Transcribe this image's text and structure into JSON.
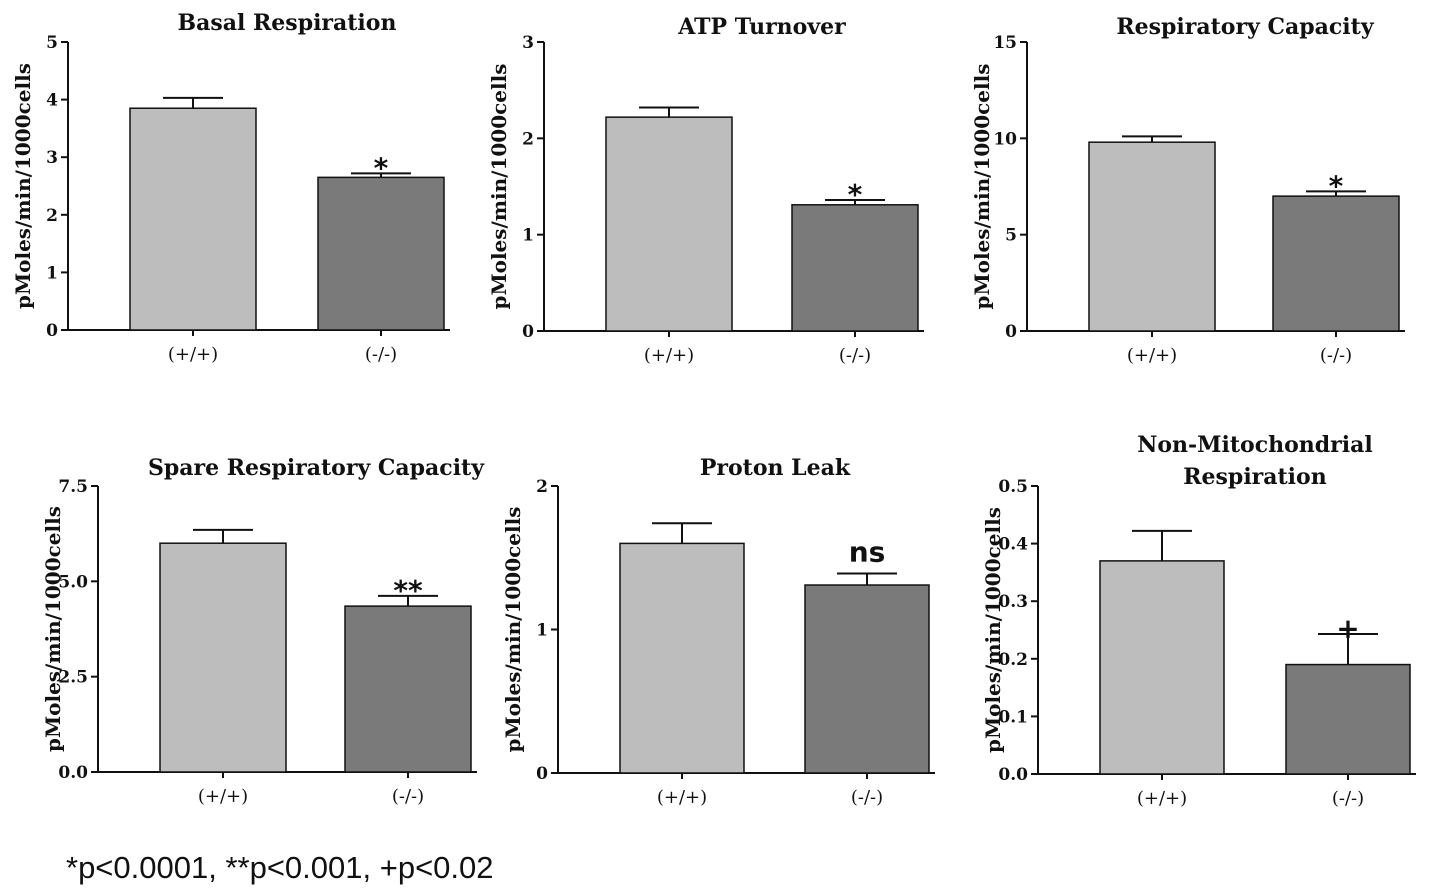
{
  "footnote": "*p<0.0001, **p<0.001, +p<0.02",
  "colors": {
    "wildtype_bar": "#bdbdbd",
    "knockout_bar": "#7a7a7a",
    "stroke": "#111111"
  },
  "chart_data": [
    {
      "type": "bar",
      "title": [
        "Basal Respiration"
      ],
      "ylabel": "pMoles/min/1000cells",
      "categories": [
        "(+/+)",
        "(-/-)"
      ],
      "values": [
        3.85,
        2.65
      ],
      "errors": [
        0.18,
        0.07
      ],
      "significance": [
        "",
        "*"
      ],
      "ylim": [
        0,
        5
      ],
      "yticks": [
        0,
        1,
        2,
        3,
        4,
        5
      ],
      "ytick_labels": [
        "0",
        "1",
        "2",
        "3",
        "4",
        "5"
      ]
    },
    {
      "type": "bar",
      "title": [
        "ATP Turnover"
      ],
      "ylabel": "pMoles/min/1000cells",
      "categories": [
        "(+/+)",
        "(-/-)"
      ],
      "values": [
        2.22,
        1.31
      ],
      "errors": [
        0.1,
        0.05
      ],
      "significance": [
        "",
        "*"
      ],
      "ylim": [
        0,
        3
      ],
      "yticks": [
        0,
        1,
        2,
        3
      ],
      "ytick_labels": [
        "0",
        "1",
        "2",
        "3"
      ]
    },
    {
      "type": "bar",
      "title": [
        "Respiratory Capacity"
      ],
      "ylabel": "pMoles/min/1000cells",
      "categories": [
        "(+/+)",
        "(-/-)"
      ],
      "values": [
        9.8,
        7.0
      ],
      "errors": [
        0.3,
        0.25
      ],
      "significance": [
        "",
        "*"
      ],
      "ylim": [
        0,
        15
      ],
      "yticks": [
        0,
        5,
        10,
        15
      ],
      "ytick_labels": [
        "0",
        "5",
        "10",
        "15"
      ]
    },
    {
      "type": "bar",
      "title": [
        "Spare Respiratory Capacity"
      ],
      "ylabel": "pMoles/min/1000cells",
      "categories": [
        "(+/+)",
        "(-/-)"
      ],
      "values": [
        6.0,
        4.35
      ],
      "errors": [
        0.35,
        0.27
      ],
      "significance": [
        "",
        "**"
      ],
      "ylim": [
        0,
        7.5
      ],
      "yticks": [
        0,
        2.5,
        5,
        7.5
      ],
      "ytick_labels": [
        "0.0",
        "2.5",
        "5.0",
        "7.5"
      ]
    },
    {
      "type": "bar",
      "title": [
        "Proton Leak"
      ],
      "ylabel": "pMoles/min/1000cells",
      "categories": [
        "(+/+)",
        "(-/-)"
      ],
      "values": [
        1.6,
        1.31
      ],
      "errors": [
        0.14,
        0.08
      ],
      "significance": [
        "",
        "ns"
      ],
      "ylim": [
        0,
        2
      ],
      "yticks": [
        0,
        1,
        2
      ],
      "ytick_labels": [
        "0",
        "1",
        "2"
      ]
    },
    {
      "type": "bar",
      "title": [
        "Non-Mitochondrial",
        "Respiration"
      ],
      "ylabel": "pMoles/min/1000cells",
      "categories": [
        "(+/+)",
        "(-/-)"
      ],
      "values": [
        0.37,
        0.19
      ],
      "errors": [
        0.052,
        0.053
      ],
      "significance": [
        "",
        "+"
      ],
      "ylim": [
        0,
        0.5
      ],
      "yticks": [
        0,
        0.1,
        0.2,
        0.3,
        0.4,
        0.5
      ],
      "ytick_labels": [
        "0.0",
        "0.1",
        "0.2",
        "0.3",
        "0.4",
        "0.5"
      ]
    }
  ]
}
